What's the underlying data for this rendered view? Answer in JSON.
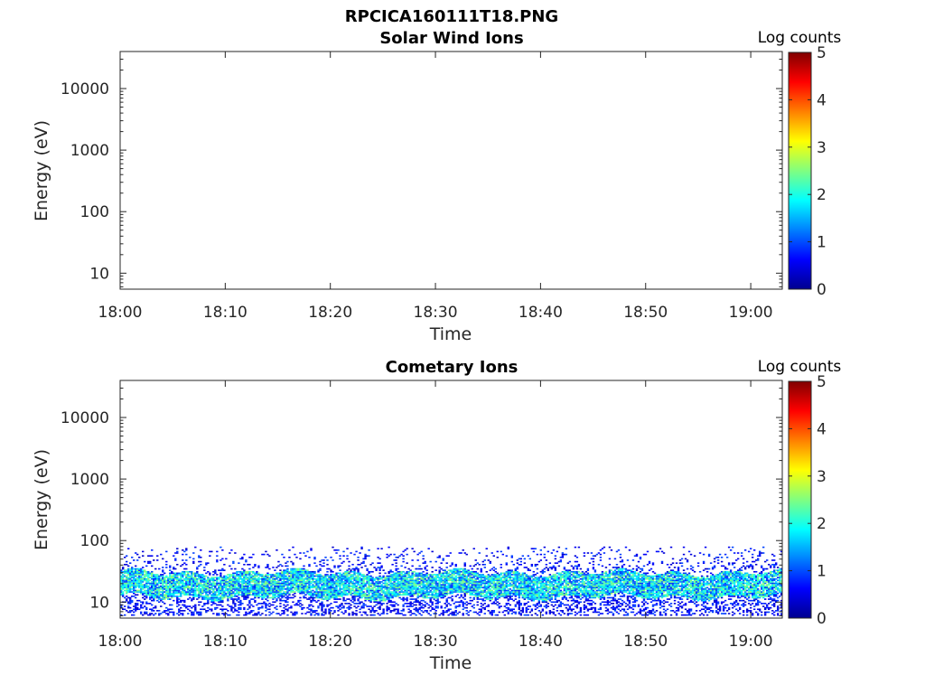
{
  "figure_title": "RPCICA160111T18.PNG",
  "colormap": [
    "#00008f",
    "#0000ff",
    "#0080ff",
    "#00ffff",
    "#80ff80",
    "#ffff00",
    "#ff8000",
    "#ff0000",
    "#800000"
  ],
  "chart_data": [
    {
      "type": "heatmap",
      "title": "Solar Wind Ions",
      "xlabel": "Time",
      "ylabel": "Energy (eV)",
      "x_ticks": [
        "18:00",
        "18:10",
        "18:20",
        "18:30",
        "18:40",
        "18:50",
        "19:00"
      ],
      "x_range_minutes": [
        0,
        63
      ],
      "y_scale": "log",
      "y_ticks": [
        "10",
        "100",
        "1000",
        "10000"
      ],
      "y_range": [
        5.5,
        40000
      ],
      "colorbar": {
        "label": "Log counts",
        "ticks": [
          "0",
          "1",
          "2",
          "3",
          "4",
          "5"
        ],
        "range": [
          0,
          5
        ]
      },
      "data_summary": "no counts recorded"
    },
    {
      "type": "heatmap",
      "title": "Cometary Ions",
      "xlabel": "Time",
      "ylabel": "Energy (eV)",
      "x_ticks": [
        "18:00",
        "18:10",
        "18:20",
        "18:30",
        "18:40",
        "18:50",
        "19:00"
      ],
      "x_range_minutes": [
        0,
        63
      ],
      "y_scale": "log",
      "y_ticks": [
        "10",
        "100",
        "1000",
        "10000"
      ],
      "y_range": [
        5.5,
        40000
      ],
      "colorbar": {
        "label": "Log counts",
        "ticks": [
          "0",
          "1",
          "2",
          "3",
          "4",
          "5"
        ],
        "range": [
          0,
          5
        ]
      },
      "data_summary": "band of counts between ~6 eV and ~80 eV across the full interval",
      "band": {
        "energy_min_eV": 6,
        "energy_max_eV": 80,
        "core_min_eV": 12,
        "core_max_eV": 30,
        "core_log_counts_range": [
          0.8,
          2.6
        ],
        "outer_log_counts_range": [
          0.3,
          1.0
        ]
      }
    }
  ]
}
